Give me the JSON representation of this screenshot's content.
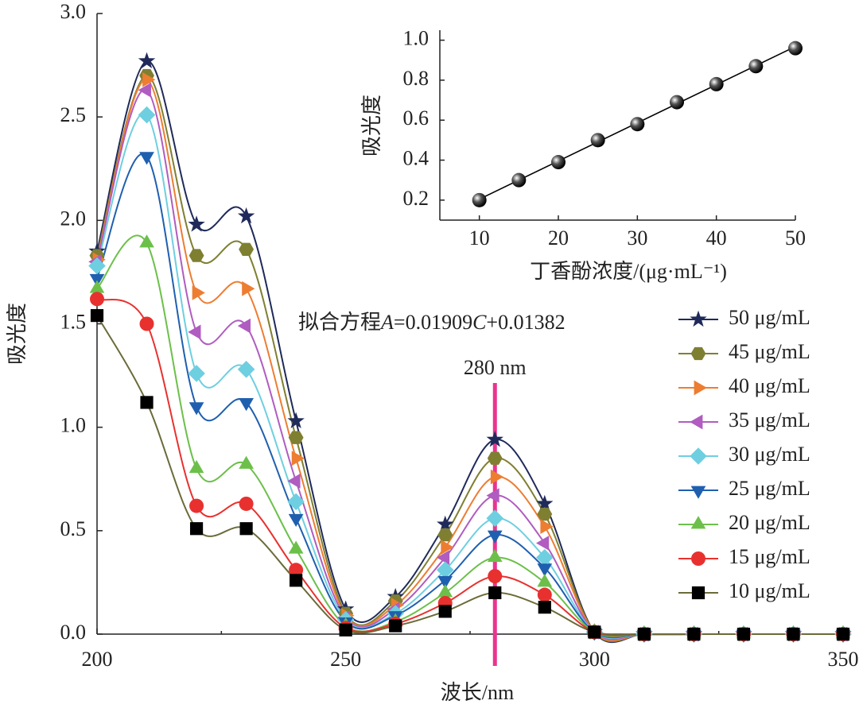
{
  "chart_data": [
    {
      "type": "line",
      "x_label": "波长/nm",
      "y_label": "吸光度",
      "x": [
        200,
        210,
        220,
        230,
        240,
        250,
        260,
        270,
        280,
        290,
        300,
        310,
        320,
        330,
        340,
        350
      ],
      "xlim": [
        200,
        350
      ],
      "xticks": [
        200,
        250,
        300,
        350
      ],
      "ylim": [
        0,
        3
      ],
      "yticks": [
        {
          "value": 0,
          "label": "0.0"
        },
        0.5,
        {
          "value": 1,
          "label": "1.0"
        },
        1.5,
        {
          "value": 2,
          "label": "2.0"
        },
        2.5,
        {
          "value": 3,
          "label": "3.0"
        }
      ],
      "legend": "right",
      "annotation": "拟合方程A=0.01909C+0.01382",
      "vline": {
        "value": 280,
        "label": "280 nm",
        "color": "#e8358f"
      },
      "series": [
        {
          "name": "50 μg/mL",
          "color": "#1f2a5a",
          "marker": "star",
          "values": [
            1.85,
            2.77,
            1.98,
            2.02,
            1.03,
            0.12,
            0.18,
            0.53,
            0.94,
            0.63,
            0.01,
            0,
            0,
            0,
            0,
            0
          ]
        },
        {
          "name": "45 μg/mL",
          "color": "#7f7f32",
          "marker": "hexagon",
          "values": [
            1.83,
            2.7,
            1.83,
            1.86,
            0.95,
            0.1,
            0.16,
            0.48,
            0.85,
            0.58,
            0.01,
            0,
            0,
            0,
            0,
            0
          ]
        },
        {
          "name": "40 μg/mL",
          "color": "#ed7d31",
          "marker": "triangle-right",
          "values": [
            1.81,
            2.68,
            1.65,
            1.67,
            0.85,
            0.09,
            0.14,
            0.42,
            0.76,
            0.52,
            0.01,
            0,
            0,
            0,
            0,
            0
          ]
        },
        {
          "name": "35 μg/mL",
          "color": "#b05cc0",
          "marker": "triangle-left",
          "values": [
            1.8,
            2.63,
            1.46,
            1.49,
            0.74,
            0.08,
            0.12,
            0.37,
            0.67,
            0.44,
            0.01,
            0,
            0,
            0,
            0,
            0
          ]
        },
        {
          "name": "30 μg/mL",
          "color": "#6ecfe0",
          "marker": "diamond",
          "values": [
            1.78,
            2.51,
            1.26,
            1.28,
            0.64,
            0.07,
            0.1,
            0.31,
            0.56,
            0.37,
            0.01,
            0,
            0,
            0,
            0,
            0
          ]
        },
        {
          "name": "25 μg/mL",
          "color": "#1f5faf",
          "marker": "triangle-down",
          "values": [
            1.72,
            2.31,
            1.1,
            1.12,
            0.56,
            0.06,
            0.09,
            0.26,
            0.48,
            0.32,
            0.01,
            0,
            0,
            0,
            0,
            0
          ]
        },
        {
          "name": "20 μg/mL",
          "color": "#6cc04a",
          "marker": "triangle-up",
          "values": [
            1.67,
            1.89,
            0.8,
            0.82,
            0.41,
            0.04,
            0.06,
            0.2,
            0.37,
            0.25,
            0.01,
            0,
            0,
            0,
            0,
            0
          ]
        },
        {
          "name": "15 μg/mL",
          "color": "#e8312f",
          "marker": "circle",
          "values": [
            1.62,
            1.5,
            0.62,
            0.63,
            0.31,
            0.03,
            0.05,
            0.15,
            0.28,
            0.19,
            0.01,
            0,
            0,
            0,
            0,
            0
          ]
        },
        {
          "name": "10 μg/mL",
          "color": "#000000",
          "line_color": "#6b6b3a",
          "marker": "square",
          "values": [
            1.54,
            1.12,
            0.51,
            0.51,
            0.26,
            0.02,
            0.04,
            0.11,
            0.2,
            0.13,
            0.01,
            0,
            0,
            0,
            0,
            0
          ]
        }
      ]
    },
    {
      "type": "scatter",
      "x_label": "丁香酚浓度/(μg·mL⁻¹)",
      "y_label": "吸光度",
      "x": [
        10,
        15,
        20,
        25,
        30,
        35,
        40,
        45,
        50
      ],
      "values": [
        0.2,
        0.3,
        0.39,
        0.5,
        0.58,
        0.69,
        0.78,
        0.87,
        0.96
      ],
      "xlim": [
        5,
        50
      ],
      "xticks": [
        10,
        20,
        30,
        40,
        50
      ],
      "ylim": [
        0.1,
        1.05
      ],
      "yticks": [
        0.2,
        0.4,
        0.6,
        0.8,
        {
          "value": 1,
          "label": "1.0"
        }
      ],
      "fit": {
        "x": [
          10,
          50
        ],
        "values": [
          0.2047,
          0.9683
        ]
      }
    }
  ]
}
